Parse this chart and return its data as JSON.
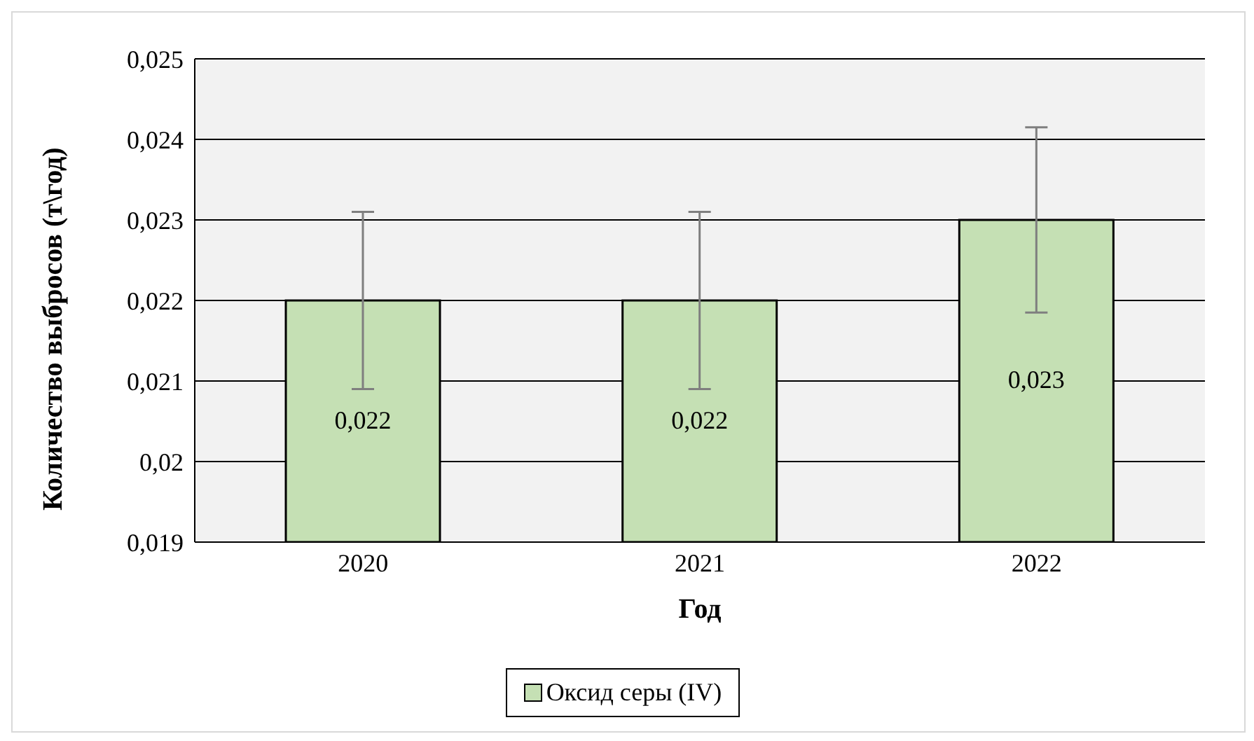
{
  "chart_data": {
    "type": "bar",
    "xlabel": "Год",
    "ylabel": "Количество выбросов (т\\год)",
    "categories": [
      "2020",
      "2021",
      "2022"
    ],
    "series": [
      {
        "name": "Оксид серы (IV)",
        "color": "#c5e0b4",
        "values": [
          0.022,
          0.022,
          0.023
        ],
        "errors": [
          0.0011,
          0.0011,
          0.00115
        ],
        "value_labels": [
          "0,022",
          "0,022",
          "0,023"
        ]
      }
    ],
    "ylim": [
      0.019,
      0.025
    ],
    "yticks": [
      {
        "value": 0.019,
        "label": "0,019"
      },
      {
        "value": 0.02,
        "label": "0,02"
      },
      {
        "value": 0.021,
        "label": "0,021"
      },
      {
        "value": 0.022,
        "label": "0,022"
      },
      {
        "value": 0.023,
        "label": "0,023"
      },
      {
        "value": 0.024,
        "label": "0,024"
      },
      {
        "value": 0.025,
        "label": "0,025"
      }
    ],
    "grid": "y",
    "legend": "bottom"
  }
}
